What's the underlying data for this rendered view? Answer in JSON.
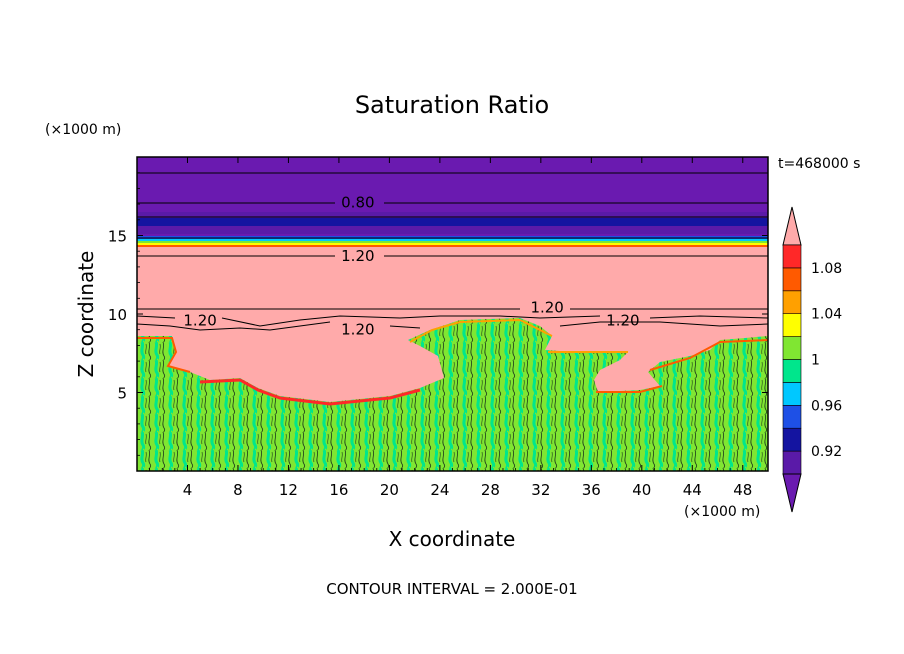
{
  "chart_data": {
    "type": "heatmap",
    "title": "Saturation Ratio",
    "xlabel": "X coordinate",
    "ylabel": "Z coordinate",
    "x_unit": "(×1000 m)",
    "y_unit": "(×1000 m)",
    "time_label": "t=468000 s",
    "footer": "CONTOUR INTERVAL = 2.000E-01",
    "xlim": [
      0,
      50
    ],
    "ylim": [
      0,
      20
    ],
    "x_ticks": [
      4,
      8,
      12,
      16,
      20,
      24,
      28,
      32,
      36,
      40,
      44,
      48
    ],
    "y_ticks": [
      5,
      10,
      15
    ],
    "contour_labels": [
      {
        "text": "0.80",
        "x": 17.5,
        "y": 17.1
      },
      {
        "text": "1.20",
        "x": 17.5,
        "y": 13.7
      },
      {
        "text": "1.20",
        "x": 5.0,
        "y": 9.6
      },
      {
        "text": "1.20",
        "x": 17.5,
        "y": 9.0
      },
      {
        "text": "1.20",
        "x": 32.5,
        "y": 10.4
      },
      {
        "text": "1.20",
        "x": 38.5,
        "y": 9.6
      }
    ],
    "colorbar": {
      "levels": [
        0.9,
        0.92,
        0.94,
        0.96,
        0.98,
        1.0,
        1.02,
        1.04,
        1.06,
        1.08,
        1.1
      ],
      "colors": [
        "#6a1ab0",
        "#5a1aa8",
        "#1414a0",
        "#1e50e6",
        "#00c8ff",
        "#00e68c",
        "#80e632",
        "#ffff00",
        "#ffa000",
        "#ff5a00",
        "#ff2828",
        "#ffaaaa"
      ],
      "tick_labels": [
        "0.92",
        "0.96",
        "1",
        "1.04",
        "1.08"
      ],
      "tick_values": [
        0.92,
        0.96,
        1.0,
        1.04,
        1.08
      ],
      "extend": "both"
    }
  }
}
